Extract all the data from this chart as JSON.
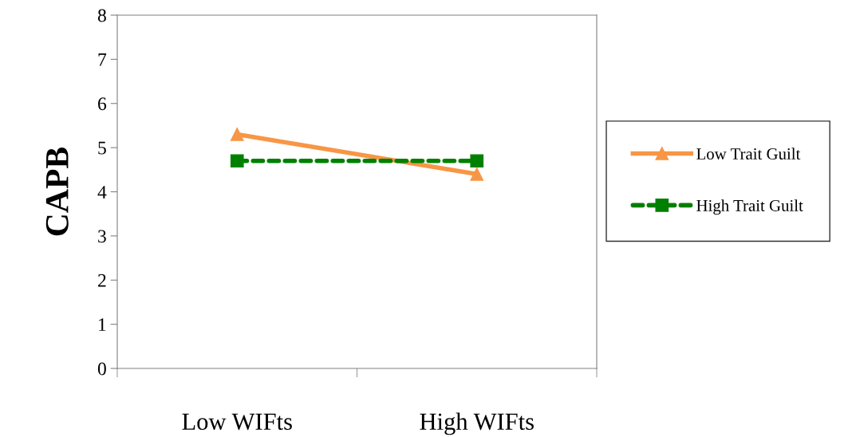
{
  "chart_data": {
    "type": "line",
    "ylabel": "CAPB",
    "categories": [
      "Low WIFts",
      "High WIFts"
    ],
    "series": [
      {
        "name": "Low Trait Guilt",
        "color": "#f79646",
        "values": [
          5.3,
          4.4
        ],
        "marker": "triangle",
        "line_style": "solid"
      },
      {
        "name": "High Trait Guilt",
        "color": "#008000",
        "values": [
          4.7,
          4.7
        ],
        "marker": "square",
        "line_style": "dashed"
      }
    ],
    "ylim": [
      0,
      8
    ],
    "yticks": [
      0,
      1,
      2,
      3,
      4,
      5,
      6,
      7,
      8
    ],
    "grid": false,
    "legend": "right"
  }
}
